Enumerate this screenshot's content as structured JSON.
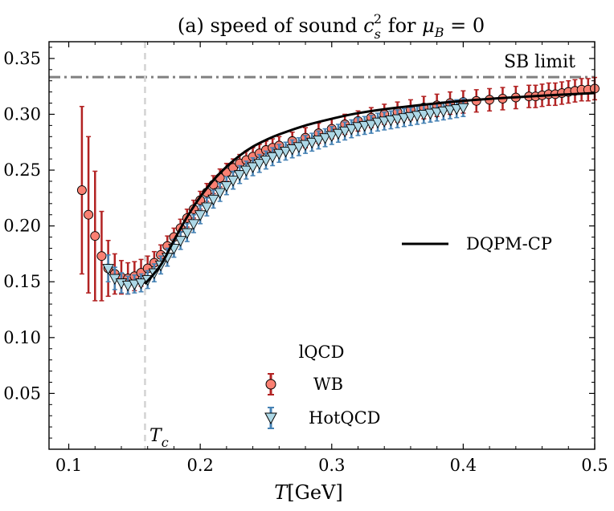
{
  "chart_data": {
    "type": "scatter",
    "title": "(a) speed of sound c_s^2 for μ_B = 0",
    "title_parts": {
      "prefix": "(a) speed of sound ",
      "var_base": "c",
      "var_sub": "s",
      "var_sup": "2",
      "middle": " for ",
      "mu": "μ",
      "mu_sub": "B",
      "suffix": " = 0"
    },
    "xlabel": "T[GeV]",
    "xlabel_parts": {
      "var": "T",
      "unit": "[GeV]"
    },
    "ylabel": "",
    "xlim": [
      0.085,
      0.5
    ],
    "ylim": [
      0.0,
      0.365
    ],
    "xticks": [
      0.1,
      0.2,
      0.3,
      0.4,
      0.5
    ],
    "xtick_labels": [
      "0.1",
      "0.2",
      "0.3",
      "0.4",
      "0.5"
    ],
    "yticks": [
      0.05,
      0.1,
      0.15,
      0.2,
      0.25,
      0.3,
      0.35
    ],
    "ytick_labels": [
      "0.05",
      "0.10",
      "0.15",
      "0.20",
      "0.25",
      "0.30",
      "0.35"
    ],
    "grid": false,
    "annotations": [
      {
        "label": "SB limit",
        "type": "hline",
        "y": 0.3333,
        "color": "#808080",
        "style": "dashdot"
      },
      {
        "label": "T_c",
        "label_base": "T",
        "label_sub": "c",
        "type": "vline",
        "x": 0.158,
        "color": "#d3d3d3",
        "style": "dashed"
      }
    ],
    "legend_groups": [
      {
        "position": "center-right",
        "entries": [
          "DQPM-CP"
        ]
      },
      {
        "position": "bottom-center",
        "title": "lQCD",
        "entries": [
          "WB",
          "HotQCD"
        ]
      }
    ],
    "series": [
      {
        "name": "DQPM-CP",
        "kind": "line",
        "color": "#000000",
        "x": [
          0.158,
          0.17,
          0.18,
          0.19,
          0.2,
          0.21,
          0.22,
          0.23,
          0.24,
          0.25,
          0.26,
          0.28,
          0.3,
          0.32,
          0.35,
          0.4,
          0.45,
          0.5
        ],
        "y": [
          0.148,
          0.165,
          0.187,
          0.208,
          0.226,
          0.241,
          0.253,
          0.263,
          0.271,
          0.277,
          0.282,
          0.29,
          0.296,
          0.301,
          0.306,
          0.312,
          0.316,
          0.319
        ]
      },
      {
        "name": "WB",
        "kind": "errorbar",
        "color": "#fa8072",
        "ecolor": "#b22222",
        "x": [
          0.11,
          0.115,
          0.12,
          0.125,
          0.13,
          0.135,
          0.14,
          0.145,
          0.15,
          0.155,
          0.16,
          0.165,
          0.17,
          0.175,
          0.18,
          0.185,
          0.19,
          0.195,
          0.2,
          0.205,
          0.21,
          0.215,
          0.22,
          0.225,
          0.23,
          0.235,
          0.24,
          0.245,
          0.25,
          0.255,
          0.26,
          0.27,
          0.28,
          0.29,
          0.3,
          0.31,
          0.32,
          0.33,
          0.34,
          0.35,
          0.36,
          0.37,
          0.38,
          0.39,
          0.4,
          0.41,
          0.42,
          0.43,
          0.44,
          0.45,
          0.455,
          0.46,
          0.465,
          0.47,
          0.475,
          0.48,
          0.485,
          0.49,
          0.495,
          0.5
        ],
        "y": [
          0.232,
          0.21,
          0.191,
          0.173,
          0.162,
          0.157,
          0.154,
          0.153,
          0.155,
          0.158,
          0.162,
          0.167,
          0.174,
          0.182,
          0.19,
          0.198,
          0.207,
          0.215,
          0.223,
          0.23,
          0.237,
          0.243,
          0.248,
          0.252,
          0.256,
          0.259,
          0.262,
          0.265,
          0.268,
          0.27,
          0.272,
          0.276,
          0.279,
          0.283,
          0.287,
          0.291,
          0.294,
          0.297,
          0.3,
          0.302,
          0.304,
          0.306,
          0.308,
          0.31,
          0.311,
          0.312,
          0.313,
          0.314,
          0.315,
          0.316,
          0.316,
          0.317,
          0.318,
          0.318,
          0.319,
          0.32,
          0.321,
          0.322,
          0.322,
          0.323
        ],
        "err": [
          0.075,
          0.07,
          0.058,
          0.04,
          0.025,
          0.018,
          0.015,
          0.014,
          0.013,
          0.012,
          0.011,
          0.01,
          0.009,
          0.009,
          0.008,
          0.008,
          0.008,
          0.008,
          0.008,
          0.008,
          0.008,
          0.008,
          0.008,
          0.008,
          0.008,
          0.008,
          0.008,
          0.008,
          0.008,
          0.008,
          0.008,
          0.008,
          0.009,
          0.009,
          0.009,
          0.009,
          0.009,
          0.009,
          0.009,
          0.009,
          0.009,
          0.01,
          0.01,
          0.01,
          0.01,
          0.01,
          0.01,
          0.01,
          0.01,
          0.01,
          0.01,
          0.01,
          0.01,
          0.01,
          0.01,
          0.01,
          0.01,
          0.01,
          0.01,
          0.01
        ]
      },
      {
        "name": "HotQCD",
        "kind": "errorbar",
        "color": "#add8e6",
        "ecolor": "#4682b4",
        "x": [
          0.13,
          0.135,
          0.14,
          0.145,
          0.15,
          0.155,
          0.16,
          0.165,
          0.17,
          0.175,
          0.18,
          0.185,
          0.19,
          0.195,
          0.2,
          0.205,
          0.21,
          0.215,
          0.22,
          0.225,
          0.23,
          0.235,
          0.24,
          0.245,
          0.25,
          0.255,
          0.26,
          0.265,
          0.27,
          0.275,
          0.28,
          0.285,
          0.29,
          0.295,
          0.3,
          0.305,
          0.31,
          0.315,
          0.32,
          0.325,
          0.33,
          0.335,
          0.34,
          0.345,
          0.35,
          0.355,
          0.36,
          0.365,
          0.37,
          0.375,
          0.38,
          0.385,
          0.39,
          0.395,
          0.4
        ],
        "y": [
          0.162,
          0.153,
          0.149,
          0.147,
          0.148,
          0.149,
          0.152,
          0.158,
          0.165,
          0.172,
          0.18,
          0.187,
          0.194,
          0.202,
          0.21,
          0.217,
          0.224,
          0.23,
          0.236,
          0.241,
          0.246,
          0.25,
          0.253,
          0.256,
          0.259,
          0.262,
          0.265,
          0.267,
          0.269,
          0.271,
          0.273,
          0.275,
          0.277,
          0.279,
          0.281,
          0.283,
          0.285,
          0.287,
          0.289,
          0.29,
          0.291,
          0.293,
          0.294,
          0.295,
          0.296,
          0.297,
          0.298,
          0.299,
          0.3,
          0.301,
          0.302,
          0.303,
          0.304,
          0.305,
          0.306
        ],
        "err": [
          0.012,
          0.01,
          0.009,
          0.008,
          0.008,
          0.008,
          0.008,
          0.008,
          0.008,
          0.008,
          0.008,
          0.008,
          0.008,
          0.008,
          0.008,
          0.008,
          0.008,
          0.008,
          0.008,
          0.008,
          0.008,
          0.008,
          0.008,
          0.008,
          0.008,
          0.008,
          0.008,
          0.008,
          0.008,
          0.008,
          0.008,
          0.008,
          0.008,
          0.008,
          0.008,
          0.008,
          0.008,
          0.008,
          0.008,
          0.008,
          0.008,
          0.008,
          0.008,
          0.008,
          0.008,
          0.008,
          0.008,
          0.008,
          0.008,
          0.008,
          0.008,
          0.008,
          0.008,
          0.008,
          0.008
        ]
      }
    ]
  }
}
